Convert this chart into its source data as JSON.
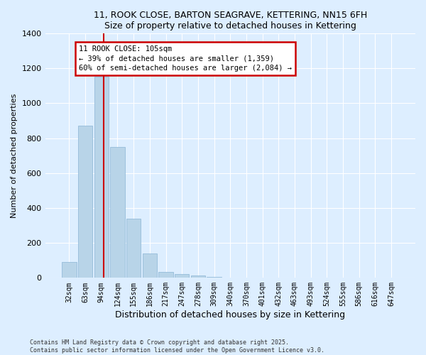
{
  "title": "11, ROOK CLOSE, BARTON SEAGRAVE, KETTERING, NN15 6FH",
  "subtitle": "Size of property relative to detached houses in Kettering",
  "xlabel": "Distribution of detached houses by size in Kettering",
  "ylabel": "Number of detached properties",
  "bar_labels": [
    "32sqm",
    "63sqm",
    "94sqm",
    "124sqm",
    "155sqm",
    "186sqm",
    "217sqm",
    "247sqm",
    "278sqm",
    "309sqm",
    "340sqm",
    "370sqm",
    "401sqm",
    "432sqm",
    "463sqm",
    "493sqm",
    "524sqm",
    "555sqm",
    "586sqm",
    "616sqm",
    "647sqm"
  ],
  "bar_values": [
    90,
    870,
    1150,
    750,
    340,
    140,
    35,
    20,
    12,
    6,
    3,
    1,
    1,
    0,
    0,
    0,
    0,
    0,
    0,
    0,
    0
  ],
  "bar_color": "#b8d4e8",
  "bar_edgecolor": "#8ab4d4",
  "background_color": "#ddeeff",
  "grid_color": "#ffffff",
  "red_line_x": 2.15,
  "annotation_text": "11 ROOK CLOSE: 105sqm\n← 39% of detached houses are smaller (1,359)\n60% of semi-detached houses are larger (2,084) →",
  "annotation_box_color": "#ffffff",
  "annotation_box_edgecolor": "#cc0000",
  "ylim": [
    0,
    1400
  ],
  "yticks": [
    0,
    200,
    400,
    600,
    800,
    1000,
    1200,
    1400
  ],
  "footer_line1": "Contains HM Land Registry data © Crown copyright and database right 2025.",
  "footer_line2": "Contains public sector information licensed under the Open Government Licence v3.0."
}
